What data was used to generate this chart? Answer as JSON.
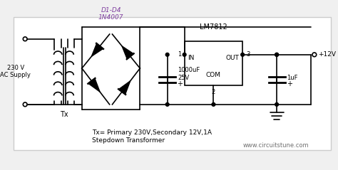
{
  "bg_color": "#f0f0f0",
  "line_color": "#000000",
  "text_color": "#000000",
  "purple_color": "#8040a0",
  "gray_text": "#707070",
  "title": "Tx= Primary 230V,Secondary 12V,1A\nStepdown Transformer",
  "website": "www.circuitstune.com",
  "supply_label": "230 V\nAC Supply",
  "tx_label": "Tx",
  "d_label": "D1-D4\n1N4007",
  "ic_label": "LM7812",
  "cap1_label": "1000uF\n25V",
  "cap2_label": "1uF",
  "out_label": "+12V"
}
